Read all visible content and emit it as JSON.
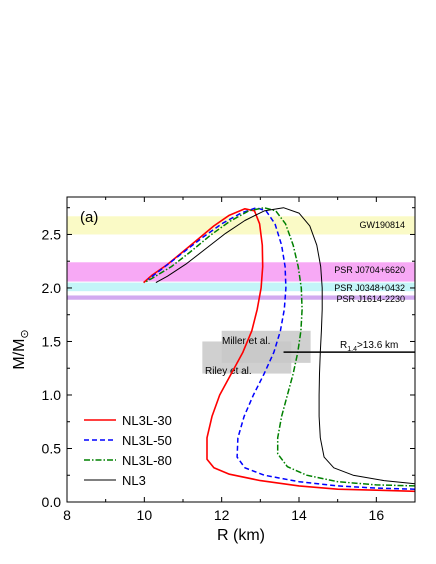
{
  "chart_data": {
    "type": "line",
    "panel_label": "(a)",
    "xlabel": "R (km)",
    "ylabel": "M/M",
    "ylabel_sub": "⊙",
    "xlim": [
      8,
      17
    ],
    "ylim": [
      0,
      2.85
    ],
    "xticks": [
      8,
      10,
      12,
      14,
      16
    ],
    "yticks": [
      0.0,
      0.5,
      1.0,
      1.5,
      2.0,
      2.5
    ],
    "ytick_labels": [
      "0.0",
      "0.5",
      "1.0",
      "1.5",
      "2.0",
      "2.5"
    ],
    "bands": [
      {
        "label": "GW190814",
        "ymin": 2.5,
        "ymax": 2.67,
        "color": "#fafac6"
      },
      {
        "label": "PSR J0704+6620",
        "ymin": 2.06,
        "ymax": 2.24,
        "color": "#f7a9f5"
      },
      {
        "label": "PSR J0348+0432",
        "ymin": 1.97,
        "ymax": 2.05,
        "color": "#c3f5f8"
      },
      {
        "label": "PSR J1614-2230",
        "ymin": 1.89,
        "ymax": 1.93,
        "color": "#d2aaf0"
      }
    ],
    "boxes": [
      {
        "label": "Miller et al.",
        "xmin": 12.0,
        "xmax": 14.3,
        "ymin": 1.3,
        "ymax": 1.6,
        "color": "#c8c8c8"
      },
      {
        "label": "Riley et al.",
        "xmin": 11.5,
        "xmax": 13.8,
        "ymin": 1.2,
        "ymax": 1.5,
        "color": "#c8c8c8"
      }
    ],
    "constraint": {
      "label": "R",
      "label_sub": "1.4",
      "label_rest": ">13.6 km",
      "y": 1.4,
      "xmin": 13.6,
      "xmax": 17
    },
    "series": [
      {
        "name": "NL3L-30",
        "color": "#ff0000",
        "dash": "solid",
        "width": 1.6,
        "points": [
          [
            17.0,
            0.1
          ],
          [
            16.0,
            0.11
          ],
          [
            15.0,
            0.12
          ],
          [
            14.0,
            0.15
          ],
          [
            13.0,
            0.2
          ],
          [
            12.2,
            0.26
          ],
          [
            11.8,
            0.32
          ],
          [
            11.62,
            0.4
          ],
          [
            11.62,
            0.6
          ],
          [
            11.75,
            0.8
          ],
          [
            11.95,
            1.0
          ],
          [
            12.25,
            1.2
          ],
          [
            12.55,
            1.4
          ],
          [
            12.78,
            1.6
          ],
          [
            12.92,
            1.8
          ],
          [
            13.02,
            2.0
          ],
          [
            13.06,
            2.2
          ],
          [
            13.05,
            2.4
          ],
          [
            12.98,
            2.6
          ],
          [
            12.85,
            2.72
          ],
          [
            12.6,
            2.74
          ],
          [
            12.2,
            2.68
          ],
          [
            11.8,
            2.58
          ],
          [
            11.4,
            2.46
          ],
          [
            11.0,
            2.34
          ],
          [
            10.6,
            2.22
          ],
          [
            10.2,
            2.12
          ],
          [
            9.98,
            2.05
          ]
        ]
      },
      {
        "name": "NL3L-50",
        "color": "#0000ff",
        "dash": "5,3",
        "width": 1.5,
        "points": [
          [
            17.0,
            0.12
          ],
          [
            16.0,
            0.13
          ],
          [
            15.0,
            0.15
          ],
          [
            14.0,
            0.19
          ],
          [
            13.1,
            0.25
          ],
          [
            12.6,
            0.32
          ],
          [
            12.4,
            0.42
          ],
          [
            12.42,
            0.6
          ],
          [
            12.58,
            0.8
          ],
          [
            12.82,
            1.0
          ],
          [
            13.1,
            1.2
          ],
          [
            13.35,
            1.4
          ],
          [
            13.52,
            1.6
          ],
          [
            13.62,
            1.8
          ],
          [
            13.66,
            2.0
          ],
          [
            13.64,
            2.2
          ],
          [
            13.55,
            2.4
          ],
          [
            13.38,
            2.6
          ],
          [
            13.15,
            2.72
          ],
          [
            12.9,
            2.75
          ],
          [
            12.5,
            2.7
          ],
          [
            12.0,
            2.6
          ],
          [
            11.5,
            2.47
          ],
          [
            11.0,
            2.33
          ],
          [
            10.5,
            2.19
          ],
          [
            10.1,
            2.08
          ]
        ]
      },
      {
        "name": "NL3L-80",
        "color": "#008000",
        "dash": "6,2,1.5,2",
        "width": 1.5,
        "points": [
          [
            17.0,
            0.15
          ],
          [
            16.0,
            0.16
          ],
          [
            15.0,
            0.19
          ],
          [
            14.2,
            0.25
          ],
          [
            13.7,
            0.33
          ],
          [
            13.45,
            0.45
          ],
          [
            13.45,
            0.6
          ],
          [
            13.55,
            0.8
          ],
          [
            13.7,
            1.0
          ],
          [
            13.85,
            1.2
          ],
          [
            13.97,
            1.4
          ],
          [
            14.05,
            1.6
          ],
          [
            14.08,
            1.8
          ],
          [
            14.06,
            2.0
          ],
          [
            13.98,
            2.2
          ],
          [
            13.85,
            2.4
          ],
          [
            13.65,
            2.6
          ],
          [
            13.4,
            2.72
          ],
          [
            13.1,
            2.75
          ],
          [
            12.7,
            2.72
          ],
          [
            12.2,
            2.62
          ],
          [
            11.7,
            2.49
          ],
          [
            11.2,
            2.34
          ],
          [
            10.7,
            2.2
          ],
          [
            10.2,
            2.09
          ],
          [
            10.0,
            2.05
          ]
        ]
      },
      {
        "name": "NL3",
        "color": "#000000",
        "dash": "solid",
        "width": 1.0,
        "points": [
          [
            17.0,
            0.17
          ],
          [
            16.2,
            0.2
          ],
          [
            15.4,
            0.25
          ],
          [
            14.9,
            0.32
          ],
          [
            14.65,
            0.42
          ],
          [
            14.55,
            0.6
          ],
          [
            14.52,
            0.8
          ],
          [
            14.52,
            1.0
          ],
          [
            14.53,
            1.2
          ],
          [
            14.55,
            1.4
          ],
          [
            14.58,
            1.6
          ],
          [
            14.6,
            1.8
          ],
          [
            14.6,
            2.0
          ],
          [
            14.56,
            2.2
          ],
          [
            14.46,
            2.4
          ],
          [
            14.28,
            2.58
          ],
          [
            14.0,
            2.7
          ],
          [
            13.6,
            2.75
          ],
          [
            13.1,
            2.72
          ],
          [
            12.6,
            2.63
          ],
          [
            12.1,
            2.51
          ],
          [
            11.6,
            2.37
          ],
          [
            11.1,
            2.23
          ],
          [
            10.6,
            2.11
          ],
          [
            10.3,
            2.05
          ]
        ]
      }
    ]
  }
}
